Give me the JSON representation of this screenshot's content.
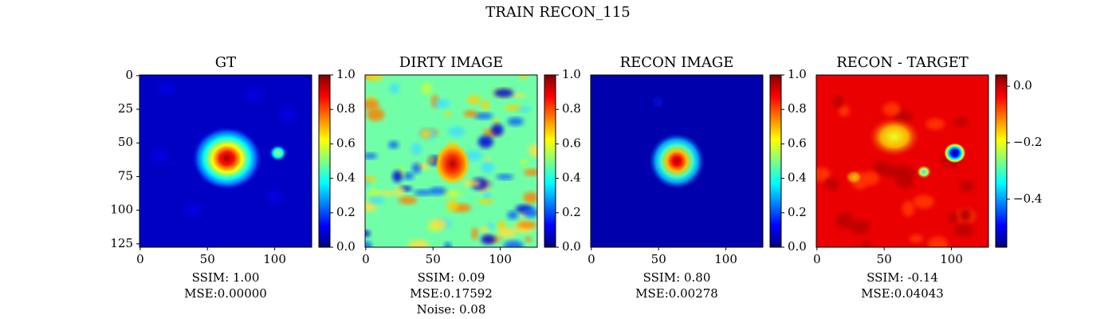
{
  "title": "TRAIN RECON_115",
  "chart_data": [
    {
      "type": "heatmap",
      "title": "GT",
      "colormap": "jet",
      "xlim": [
        -0.5,
        127.5
      ],
      "ylim": [
        127.5,
        -0.5
      ],
      "xticks": [
        0,
        50,
        100
      ],
      "yticks": [
        0,
        25,
        50,
        75,
        100,
        125
      ],
      "colorbar_lim": [
        0,
        1
      ],
      "colorbar_ticks": [
        {
          "value": 0,
          "label": "0.0"
        },
        {
          "value": 0.2,
          "label": "0.2"
        },
        {
          "value": 0.4,
          "label": "0.4"
        },
        {
          "value": 0.6,
          "label": "0.6"
        },
        {
          "value": 0.8,
          "label": "0.8"
        },
        {
          "value": 1,
          "label": "1.0"
        }
      ],
      "annotations": [
        "SSIM: 1.00",
        "MSE:0.00000"
      ]
    },
    {
      "type": "heatmap",
      "title": "DIRTY IMAGE",
      "colormap": "jet",
      "xlim": [
        -0.5,
        127.5
      ],
      "ylim": [
        127.5,
        -0.5
      ],
      "xticks": [
        0,
        50,
        100
      ],
      "yticks": [],
      "colorbar_lim": [
        0,
        1
      ],
      "colorbar_ticks": [
        {
          "value": 0,
          "label": "0.0"
        },
        {
          "value": 0.2,
          "label": "0.2"
        },
        {
          "value": 0.4,
          "label": "0.4"
        },
        {
          "value": 0.6,
          "label": "0.6"
        },
        {
          "value": 0.8,
          "label": "0.8"
        },
        {
          "value": 1,
          "label": "1.0"
        }
      ],
      "annotations": [
        "SSIM: 0.09",
        "MSE:0.17592",
        "Noise: 0.08"
      ]
    },
    {
      "type": "heatmap",
      "title": "RECON IMAGE",
      "colormap": "jet",
      "xlim": [
        -0.5,
        127.5
      ],
      "ylim": [
        127.5,
        -0.5
      ],
      "xticks": [
        0,
        50,
        100
      ],
      "yticks": [],
      "colorbar_lim": [
        0,
        1
      ],
      "colorbar_ticks": [
        {
          "value": 0,
          "label": "0.0"
        },
        {
          "value": 0.2,
          "label": "0.2"
        },
        {
          "value": 0.4,
          "label": "0.4"
        },
        {
          "value": 0.6,
          "label": "0.6"
        },
        {
          "value": 0.8,
          "label": "0.8"
        },
        {
          "value": 1,
          "label": "1.0"
        }
      ],
      "annotations": [
        "SSIM: 0.80",
        "MSE:0.00278"
      ]
    },
    {
      "type": "heatmap",
      "title": "RECON - TARGET",
      "colormap": "jet",
      "xlim": [
        -0.5,
        127.5
      ],
      "ylim": [
        127.5,
        -0.5
      ],
      "xticks": [
        0,
        50,
        100
      ],
      "yticks": [],
      "colorbar_lim": [
        -0.57,
        0.04
      ],
      "colorbar_ticks": [
        {
          "value": 0,
          "label": "0.0"
        },
        {
          "value": -0.2,
          "label": "−0.2"
        },
        {
          "value": -0.4,
          "label": "−0.4"
        }
      ],
      "annotations": [
        "SSIM: -0.14",
        "MSE:0.04043"
      ]
    }
  ]
}
